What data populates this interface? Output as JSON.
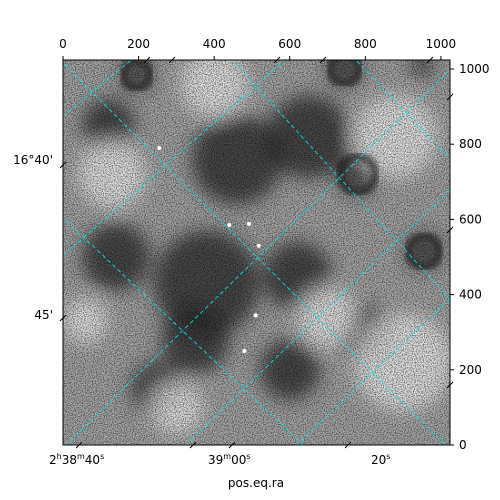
{
  "chart_data": {
    "type": "heatmap",
    "xlabel": "pos.eq.ra",
    "ylabel": "",
    "pixel_axes": {
      "xlim": [
        0,
        1024
      ],
      "ylim": [
        0,
        1024
      ],
      "top_ticks": [
        0,
        200,
        400,
        600,
        800,
        1000
      ],
      "right_ticks": [
        0,
        200,
        400,
        600,
        800,
        1000
      ]
    },
    "wcs_axes": {
      "ra_ticks": [
        {
          "label_h": "2",
          "label_m": "38",
          "label_s": "40",
          "label_main": "",
          "style": "hms"
        },
        {
          "label_h": "",
          "label_m": "39",
          "label_s": "00",
          "label_main": "",
          "style": "ms"
        },
        {
          "label_h": "",
          "label_m": "",
          "label_s": "",
          "label_main": "20s",
          "style": "s"
        }
      ],
      "dec_ticks": [
        "16°40'",
        "45'"
      ]
    },
    "colormap": "gray",
    "grid_color": "#00e5e5",
    "grid_linestyle": "dashed",
    "bright_sources": [
      {
        "x": 255,
        "y": 790
      },
      {
        "x": 440,
        "y": 585
      },
      {
        "x": 492,
        "y": 588
      },
      {
        "x": 518,
        "y": 530
      },
      {
        "x": 510,
        "y": 345
      },
      {
        "x": 480,
        "y": 250
      }
    ],
    "dark_blobs": [
      {
        "x": 195,
        "y": 985,
        "r": 42
      },
      {
        "x": 745,
        "y": 1000,
        "r": 45
      },
      {
        "x": 950,
        "y": 1010,
        "r": 30
      },
      {
        "x": 780,
        "y": 720,
        "r": 55
      },
      {
        "x": 955,
        "y": 515,
        "r": 48
      },
      {
        "x": 620,
        "y": 450,
        "r": 90
      },
      {
        "x": 380,
        "y": 430,
        "r": 140
      },
      {
        "x": 250,
        "y": 150,
        "r": 70
      },
      {
        "x": 600,
        "y": 200,
        "r": 80
      },
      {
        "x": 140,
        "y": 500,
        "r": 90
      },
      {
        "x": 460,
        "y": 760,
        "r": 120
      },
      {
        "x": 650,
        "y": 820,
        "r": 110
      },
      {
        "x": 800,
        "y": 300,
        "r": 70
      },
      {
        "x": 120,
        "y": 850,
        "r": 70
      },
      {
        "x": 350,
        "y": 280,
        "r": 90
      }
    ],
    "light_blobs": [
      {
        "x": 900,
        "y": 220,
        "r": 130
      },
      {
        "x": 880,
        "y": 820,
        "r": 110
      },
      {
        "x": 130,
        "y": 720,
        "r": 90
      },
      {
        "x": 700,
        "y": 340,
        "r": 80
      },
      {
        "x": 300,
        "y": 100,
        "r": 70
      },
      {
        "x": 60,
        "y": 330,
        "r": 60
      },
      {
        "x": 400,
        "y": 960,
        "r": 90
      }
    ]
  }
}
